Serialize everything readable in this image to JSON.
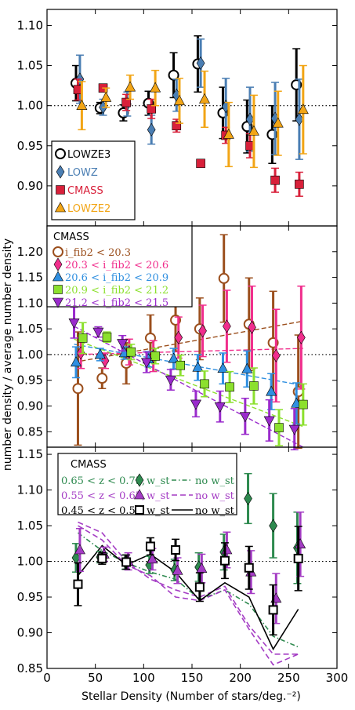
{
  "figure": {
    "xlabel": "Stellar Density (Number of stars/deg.⁻²)",
    "ylabel": "number density / average number density"
  },
  "colors": {
    "LOWZE3": "#000000",
    "LOWZ": "#4a7eb3",
    "CMASS": "#d8203a",
    "LOWZE2": "#f2a516",
    "brown": "#9b4f1d",
    "pink": "#f02e8c",
    "blue": "#2f8fe0",
    "lime": "#8ce02e",
    "purple": "#9a2bcc",
    "green": "#2e8a4f",
    "violet": "#a43cc4",
    "black": "#000000"
  },
  "chart_data": [
    {
      "type": "scatter",
      "xlim": [
        0,
        300
      ],
      "ylim": [
        0.85,
        1.12
      ],
      "xticks": [
        0,
        50,
        100,
        150,
        200,
        250,
        300
      ],
      "yticks": [
        0.9,
        0.95,
        1.0,
        1.05,
        1.1
      ],
      "reference_line": 1.0,
      "legend": {
        "position": "lower-left",
        "entries": [
          "LOWZE3",
          "LOWZ",
          "CMASS",
          "LOWZE2"
        ]
      },
      "series": [
        {
          "name": "LOWZE3",
          "color": "LOWZE3",
          "marker": "circle-open",
          "x": [
            30,
            55,
            79,
            105,
            131,
            156,
            182,
            207,
            233,
            258
          ],
          "y": [
            1.028,
            0.997,
            0.991,
            1.003,
            1.038,
            1.052,
            0.991,
            0.974,
            0.964,
            1.026
          ],
          "err": [
            0.022,
            0.007,
            0.01,
            0.015,
            0.028,
            0.035,
            0.032,
            0.033,
            0.036,
            0.045
          ]
        },
        {
          "name": "LOWZ",
          "color": "LOWZ",
          "marker": "diamond",
          "x": [
            34,
            58,
            83,
            108,
            134,
            159,
            185,
            210,
            236,
            261
          ],
          "y": [
            1.033,
            0.998,
            1.002,
            0.97,
            1.013,
            1.053,
            0.999,
            0.983,
            0.984,
            0.983
          ],
          "err": [
            0.03,
            0.01,
            0.015,
            0.018,
            0.02,
            0.03,
            0.035,
            0.04,
            0.045,
            0.05
          ]
        },
        {
          "name": "CMASS",
          "color": "CMASS",
          "marker": "square",
          "x": [
            32,
            58,
            82,
            108,
            134,
            159,
            185,
            210,
            236,
            261
          ],
          "y": [
            1.02,
            1.022,
            1.004,
            0.996,
            0.975,
            0.928,
            0.963,
            0.95,
            0.907,
            0.902
          ],
          "err": [
            0.013,
            0.0,
            0.01,
            0.012,
            0.008,
            0.0,
            0.01,
            0.015,
            0.015,
            0.015
          ]
        },
        {
          "name": "LOWZE2",
          "color": "LOWZE2",
          "marker": "triangle-up",
          "x": [
            36,
            61,
            86,
            112,
            137,
            163,
            188,
            214,
            239,
            265
          ],
          "y": [
            1.0,
            1.01,
            1.023,
            1.022,
            1.006,
            1.008,
            0.964,
            0.968,
            0.978,
            0.995
          ],
          "err": [
            0.03,
            0.012,
            0.015,
            0.022,
            0.028,
            0.035,
            0.04,
            0.045,
            0.04,
            0.055
          ]
        }
      ]
    },
    {
      "type": "scatter",
      "xlim": [
        0,
        300
      ],
      "ylim": [
        0.82,
        1.25
      ],
      "xticks": [
        0,
        50,
        100,
        150,
        200,
        250,
        300
      ],
      "yticks": [
        0.85,
        0.9,
        0.95,
        1.0,
        1.05,
        1.1,
        1.15,
        1.2
      ],
      "reference_line": 1.0,
      "legend": {
        "position": "top-left",
        "title": "CMASS",
        "entries": [
          "i_fib2 < 20.3",
          "20.3 < i_fib2 < 20.6",
          "20.6 < i_fib2 < 20.9",
          "20.9 < i_fib2 < 21.2",
          "21.2 < i_fib2 < 21.5"
        ]
      },
      "series": [
        {
          "name": "i_fib2 < 20.3",
          "color": "brown",
          "marker": "circle-open",
          "x": [
            32,
            57,
            82,
            107,
            133,
            158,
            183,
            209,
            234,
            260
          ],
          "y": [
            0.934,
            0.954,
            0.983,
            1.032,
            1.067,
            1.05,
            1.148,
            1.059,
            1.023,
            0.928
          ],
          "err": [
            0.11,
            0.02,
            0.04,
            0.045,
            0.06,
            0.06,
            0.085,
            0.09,
            0.1,
            0.11
          ],
          "trend": [
            0.985,
            1.065
          ]
        },
        {
          "name": "20.3 < i_fib2 < 20.6",
          "color": "pink",
          "marker": "diamond",
          "x": [
            35,
            60,
            85,
            110,
            136,
            161,
            186,
            212,
            237,
            263
          ],
          "y": [
            1.003,
            0.988,
            1.005,
            0.997,
            1.033,
            1.046,
            1.055,
            1.053,
            0.998,
            1.033
          ],
          "err": [
            0.03,
            0.015,
            0.025,
            0.03,
            0.04,
            0.05,
            0.07,
            0.08,
            0.09,
            0.1
          ],
          "trend": [
            1.0,
            1.012
          ]
        },
        {
          "name": "20.6 < i_fib2 < 20.9",
          "color": "blue",
          "marker": "triangle-up",
          "x": [
            30,
            55,
            80,
            105,
            131,
            156,
            182,
            207,
            232,
            258
          ],
          "y": [
            0.985,
            1.0,
            1.003,
            0.991,
            0.992,
            0.975,
            0.973,
            0.972,
            0.928,
            0.905
          ],
          "err": [
            0.03,
            0.012,
            0.012,
            0.015,
            0.02,
            0.025,
            0.03,
            0.035,
            0.035,
            0.04
          ],
          "trend": [
            1.02,
            0.94
          ]
        },
        {
          "name": "20.9 < i_fib2 < 21.2",
          "color": "lime",
          "marker": "square",
          "x": [
            37,
            62,
            87,
            112,
            138,
            163,
            189,
            214,
            240,
            265
          ],
          "y": [
            1.032,
            1.034,
            1.005,
            0.997,
            0.979,
            0.943,
            0.937,
            0.939,
            0.858,
            0.903
          ],
          "err": [
            0.03,
            0.01,
            0.015,
            0.015,
            0.02,
            0.025,
            0.03,
            0.035,
            0.035,
            0.04
          ],
          "trend": [
            1.03,
            0.86
          ]
        },
        {
          "name": "21.2 < i_fib2 < 21.5",
          "color": "purple",
          "marker": "triangle-down",
          "x": [
            28,
            53,
            78,
            103,
            128,
            154,
            179,
            205,
            230,
            256
          ],
          "y": [
            1.062,
            1.044,
            1.022,
            0.985,
            0.951,
            0.904,
            0.899,
            0.88,
            0.872,
            0.855
          ],
          "err": [
            0.03,
            0.01,
            0.015,
            0.02,
            0.02,
            0.025,
            0.03,
            0.035,
            0.04,
            0.04
          ],
          "trend": [
            1.055,
            0.82
          ]
        }
      ]
    },
    {
      "type": "scatter",
      "xlim": [
        0,
        300
      ],
      "ylim": [
        0.85,
        1.16
      ],
      "xticks": [
        0,
        50,
        100,
        150,
        200,
        250,
        300
      ],
      "xticklabels": [
        "0",
        "50",
        "100",
        "150",
        "200",
        "250",
        "300"
      ],
      "yticks": [
        0.85,
        0.9,
        0.95,
        1.0,
        1.05,
        1.1,
        1.15
      ],
      "reference_line": 1.0,
      "legend": {
        "position": "top-left",
        "title": "CMASS",
        "entries": [
          {
            "range": "0.65 < z < 0.75,",
            "w": "w_st",
            "no": "no w_st",
            "style": "dashdot"
          },
          {
            "range": "0.55 < z < 0.65,",
            "w": "w_st",
            "no": "no w_st",
            "style": "dashed"
          },
          {
            "range": "0.45 < z < 0.55,",
            "w": "w_st",
            "no": "no w_st",
            "style": "solid"
          }
        ]
      },
      "series": [
        {
          "name": "0.65 < z < 0.75, w_st",
          "color": "green",
          "marker": "diamond",
          "x": [
            30,
            55,
            81,
            106,
            132,
            157,
            183,
            208,
            234,
            259
          ],
          "y": [
            1.005,
            1.006,
            0.999,
            0.995,
            0.988,
            0.992,
            1.013,
            1.088,
            1.05,
            1.019
          ],
          "err": [
            0.02,
            0.008,
            0.01,
            0.012,
            0.015,
            0.02,
            0.025,
            0.035,
            0.045,
            0.05
          ]
        },
        {
          "name": "0.55 < z < 0.65, w_st",
          "color": "violet",
          "marker": "triangle-up",
          "x": [
            34,
            59,
            84,
            109,
            135,
            160,
            186,
            211,
            237,
            262
          ],
          "y": [
            1.016,
            1.01,
            1.0,
            1.003,
            0.987,
            0.99,
            1.016,
            0.985,
            0.948,
            1.024
          ],
          "err": [
            0.03,
            0.01,
            0.012,
            0.015,
            0.018,
            0.02,
            0.025,
            0.03,
            0.035,
            0.045
          ]
        },
        {
          "name": "0.45 < z < 0.55, w_st",
          "color": "black",
          "marker": "square-open",
          "x": [
            32,
            57,
            82,
            107,
            133,
            158,
            184,
            209,
            234,
            260
          ],
          "y": [
            0.968,
            1.004,
            0.999,
            1.021,
            1.016,
            0.964,
            1.001,
            0.991,
            0.932,
            1.004
          ],
          "err": [
            0.03,
            0.008,
            0.01,
            0.012,
            0.015,
            0.02,
            0.025,
            0.03,
            0.035,
            0.045
          ]
        },
        {
          "name": "0.65 < z < 0.75, no w_st",
          "color": "green",
          "line": "dashdot",
          "x": [
            32,
            57,
            82,
            107,
            133,
            158,
            184,
            209,
            234,
            260
          ],
          "y": [
            1.04,
            1.015,
            0.998,
            0.985,
            0.975,
            0.947,
            0.96,
            0.94,
            0.895,
            0.88
          ]
        },
        {
          "name": "0.55 < z < 0.65, no w_st",
          "color": "violet",
          "line": "dashed",
          "x": [
            32,
            57,
            82,
            107,
            133,
            158,
            184,
            209,
            234,
            260
          ],
          "y": [
            1.05,
            1.03,
            0.995,
            0.98,
            0.95,
            0.945,
            0.96,
            0.905,
            0.855,
            0.87
          ]
        },
        {
          "name": "0.55 < z < 0.65, no w_st (2)",
          "color": "violet",
          "line": "dashed",
          "x": [
            32,
            57,
            82,
            107,
            133,
            158,
            184,
            209,
            234,
            260
          ],
          "y": [
            1.055,
            1.04,
            1.0,
            0.975,
            0.96,
            0.95,
            0.965,
            0.91,
            0.87,
            0.87
          ]
        },
        {
          "name": "0.45 < z < 0.55, no w_st",
          "color": "black",
          "line": "solid",
          "x": [
            32,
            57,
            82,
            107,
            133,
            158,
            184,
            209,
            234,
            260
          ],
          "y": [
            0.98,
            1.022,
            0.995,
            1.01,
            0.985,
            0.945,
            0.97,
            0.95,
            0.877,
            0.933
          ]
        }
      ]
    }
  ]
}
